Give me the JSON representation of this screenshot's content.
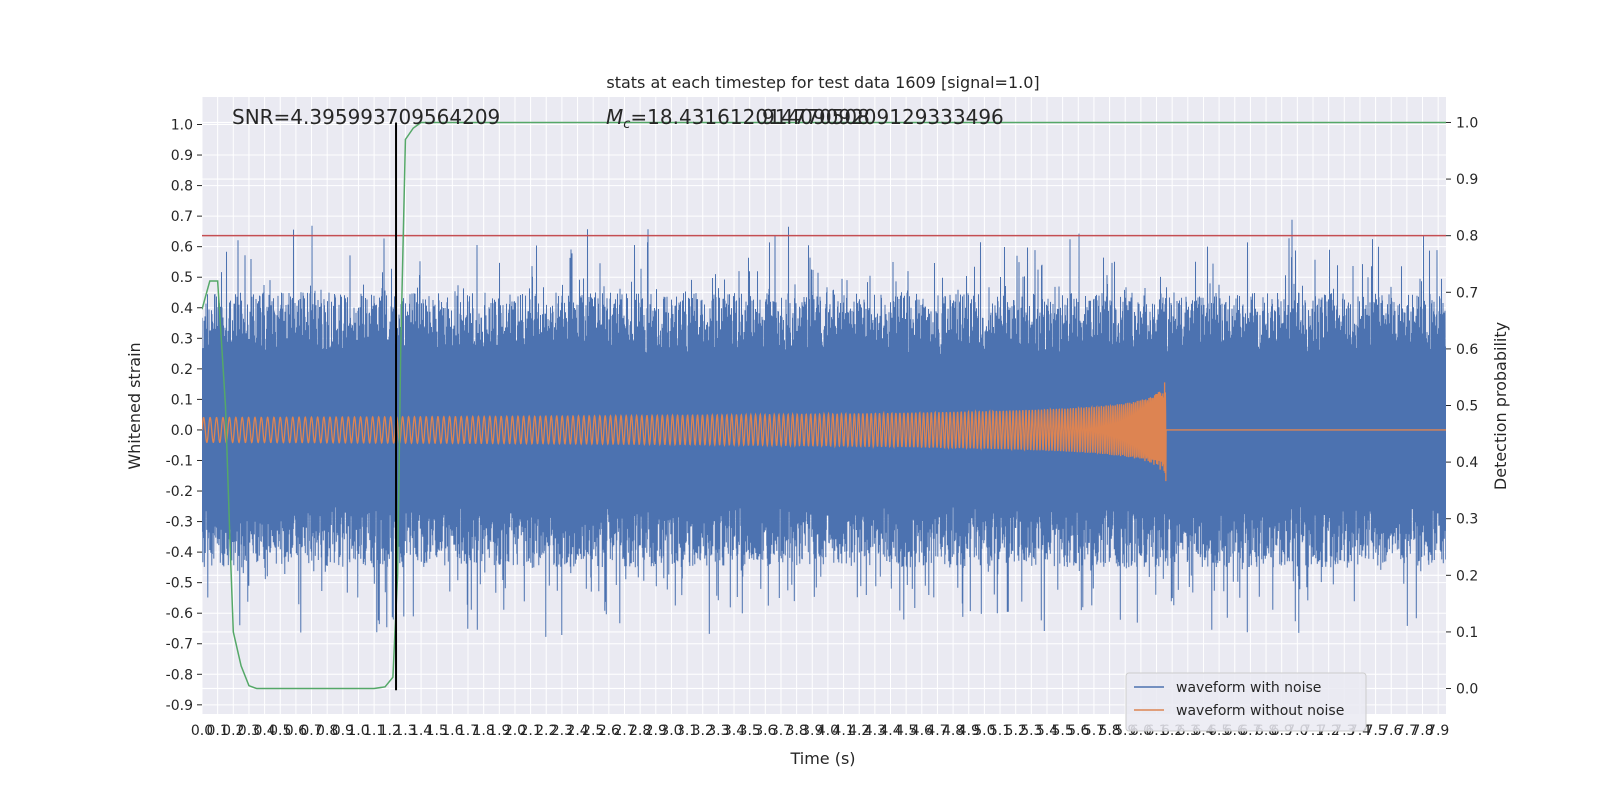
{
  "chart_data": {
    "type": "line",
    "title": "stats at each timestep for test data 1609 [signal=1.0]",
    "xlabel": "Time (s)",
    "ylabel": "Whitened strain",
    "y2label": "Detection probability",
    "xlim": [
      0.0,
      7.95
    ],
    "ylim": [
      -0.93,
      1.09
    ],
    "y2lim": [
      -0.045,
      1.045
    ],
    "x_tick_step": 0.1,
    "x_tick_max": 7.9,
    "y_ticks": [
      "1.0",
      "0.9",
      "0.8",
      "0.7",
      "0.6",
      "0.5",
      "0.4",
      "0.3",
      "0.2",
      "0.1",
      "0.0",
      "-0.1",
      "-0.2",
      "-0.3",
      "-0.4",
      "-0.5",
      "-0.6",
      "-0.7",
      "-0.8",
      "-0.9"
    ],
    "y2_ticks": [
      "1.0",
      "0.9",
      "0.8",
      "0.7",
      "0.6",
      "0.5",
      "0.4",
      "0.3",
      "0.2",
      "0.1",
      "0.0"
    ],
    "grid": true,
    "legend_position": "lower-right",
    "annotations": {
      "snr": "SNR=4.395993709564209",
      "mc_prefix": "M",
      "mc_sub": "c",
      "mc_value": "=18.431612014770508",
      "overlap": "9140909209129333496"
    },
    "marker_line_x": 1.24,
    "threshold_y": 0.8,
    "signal_end_x": 6.16,
    "colors": {
      "noisy": "#4c72b0",
      "clean": "#dd8452",
      "prob": "#55a868",
      "threshold": "#c44e52",
      "marker": "#000000",
      "background": "#eaeaf2",
      "grid": "#ffffff"
    },
    "series": [
      {
        "name": "waveform with noise",
        "envelope_upper": 0.45,
        "envelope_lower": -0.45
      },
      {
        "name": "waveform without noise",
        "peak_amplitude": 0.17,
        "end_time": 6.16
      },
      {
        "name": "detection probability",
        "x": [
          0.0,
          0.05,
          0.1,
          0.15,
          0.18,
          0.2,
          0.25,
          0.3,
          0.35,
          0.5,
          0.8,
          1.0,
          1.1,
          1.17,
          1.22,
          1.25,
          1.27,
          1.3,
          1.35,
          1.4,
          1.5,
          2.0,
          3.0,
          4.0,
          5.0,
          6.0,
          7.0,
          7.95
        ],
        "y": [
          0.67,
          0.72,
          0.72,
          0.5,
          0.25,
          0.1,
          0.04,
          0.005,
          0.0,
          0.0,
          0.0,
          0.0,
          0.0,
          0.003,
          0.02,
          0.2,
          0.6,
          0.97,
          0.99,
          1.0,
          1.0,
          1.0,
          1.0,
          1.0,
          1.0,
          1.0,
          1.0,
          1.0
        ]
      }
    ]
  }
}
